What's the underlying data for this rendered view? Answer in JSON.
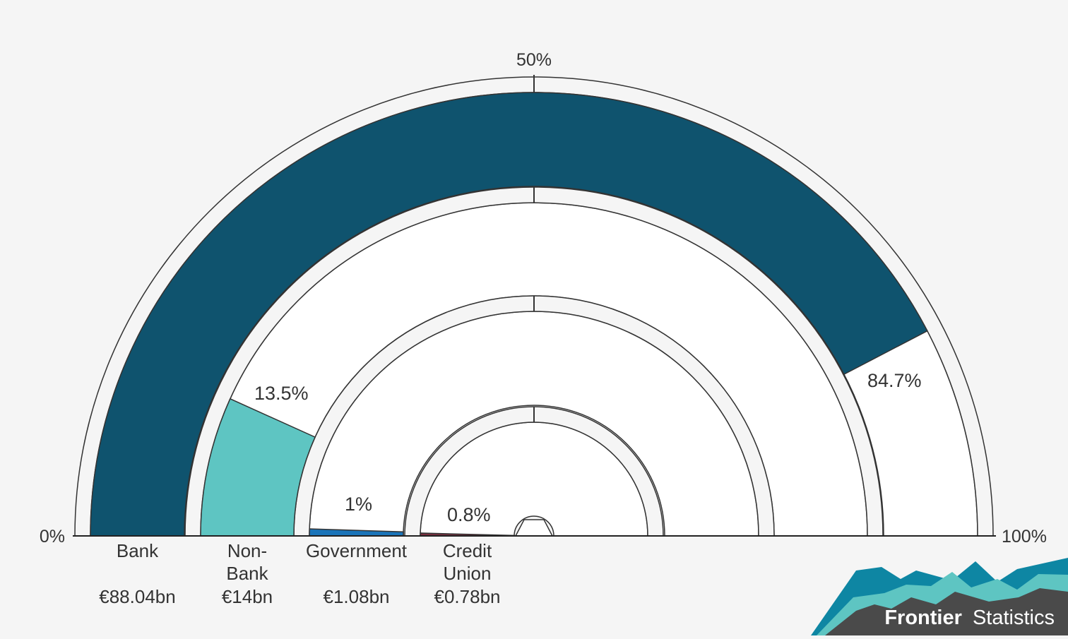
{
  "chart_data": {
    "type": "radial-bar",
    "scale_labels": {
      "start": "0%",
      "mid": "50%",
      "end": "100%"
    },
    "series": [
      {
        "category": "Bank",
        "category_lines": [
          "Bank"
        ],
        "percent": 84.7,
        "percent_label": "84.7%",
        "amount_label": "€88.04bn",
        "color": "#0f536e"
      },
      {
        "category": "Non-Bank",
        "category_lines": [
          "Non-",
          "Bank"
        ],
        "percent": 13.5,
        "percent_label": "13.5%",
        "amount_label": "€14bn",
        "color": "#5ec5c2"
      },
      {
        "category": "Government",
        "category_lines": [
          "Government"
        ],
        "percent": 1,
        "percent_label": "1%",
        "amount_label": "€1.08bn",
        "color": "#1a74b9"
      },
      {
        "category": "Credit Union",
        "category_lines": [
          "Credit",
          "Union"
        ],
        "percent": 0.8,
        "percent_label": "0.8%",
        "amount_label": "€0.78bn",
        "color": "#7a2f3f"
      }
    ]
  },
  "branding": {
    "word_bold": "Frontier",
    "word_light": "Statistics",
    "colors": [
      "#0f536e",
      "#0e86a3",
      "#5ec5c2",
      "#4a4a4a"
    ]
  }
}
